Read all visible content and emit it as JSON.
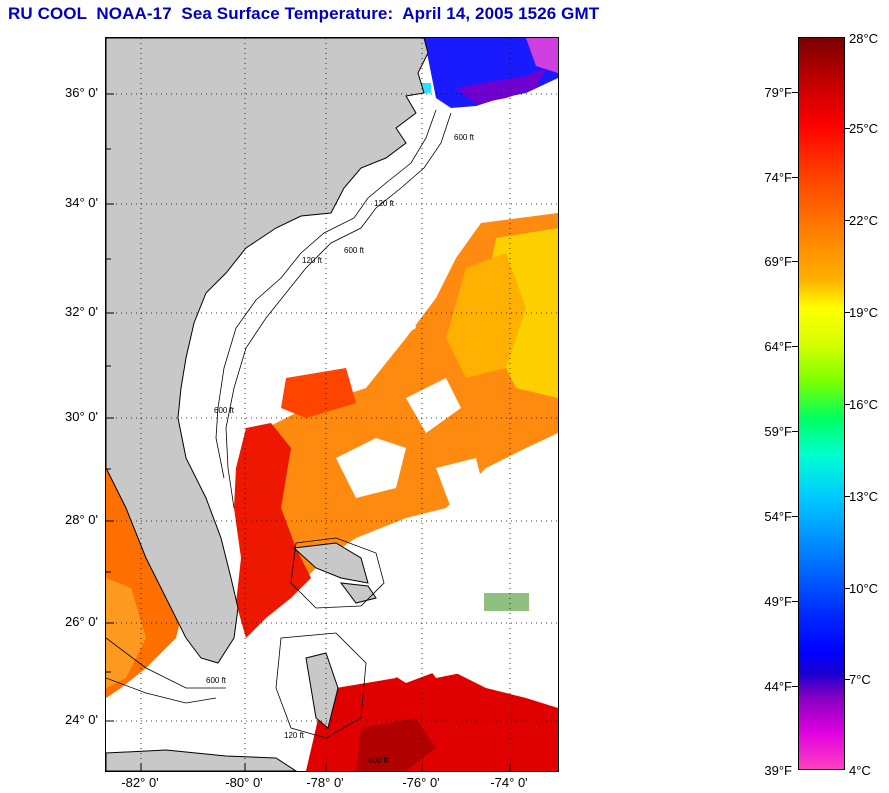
{
  "title": "RU COOL  NOAA-17  Sea Surface Temperature:  April 14, 2005 1526 GMT",
  "map": {
    "lat_labels": [
      "36° 0'",
      "34° 0'",
      "32° 0'",
      "30° 0'",
      "28° 0'",
      "26° 0'",
      "24° 0'"
    ],
    "lon_labels": [
      "-82° 0'",
      "-80° 0'",
      "-78° 0'",
      "-76° 0'",
      "-74° 0'"
    ],
    "contours": {
      "c1": "120 ft",
      "c2": "600 ft",
      "c3": "120 ft",
      "c4": "600 ft",
      "c5": "600 ft",
      "c6": "120 ft",
      "c7": "600 ft",
      "c8": "600 ft"
    },
    "colors": {
      "land": "#c8c8c8",
      "ocean_nodata": "#ffffff",
      "cold": "#1414ff",
      "warm": "#ff2000",
      "gulf_stream": "#e81000"
    }
  },
  "scale": {
    "fahrenheit": [
      "79°F",
      "74°F",
      "69°F",
      "64°F",
      "59°F",
      "54°F",
      "49°F",
      "44°F",
      "39°F"
    ],
    "celsius": [
      "28°C",
      "25°C",
      "22°C",
      "19°C",
      "16°C",
      "13°C",
      "10°C",
      "7°C",
      "4°C"
    ]
  }
}
